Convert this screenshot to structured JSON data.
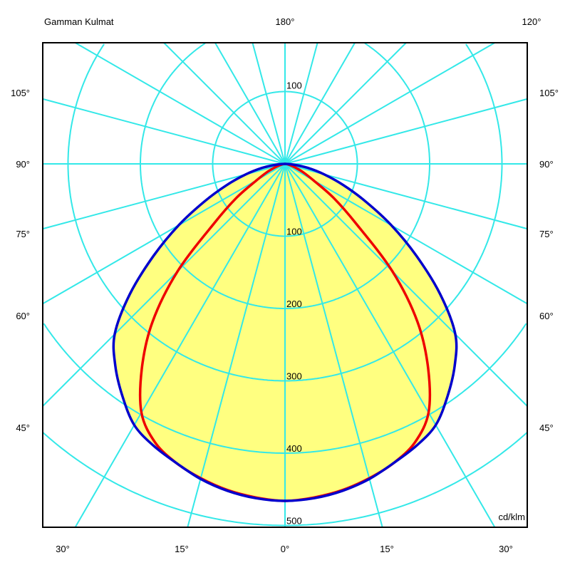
{
  "header": {
    "title": "Gamman Kulmat",
    "top_center_angle": "180°",
    "top_right_angle": "120°"
  },
  "side_labels": [
    "105°",
    "90°",
    "75°",
    "60°",
    "45°"
  ],
  "bottom_labels": [
    "30°",
    "15°",
    "0°",
    "15°",
    "30°"
  ],
  "unit": "cd/klm",
  "ring_labels_upper": [
    "100"
  ],
  "ring_labels_lower": [
    "100",
    "200",
    "300",
    "400",
    "500"
  ],
  "colors": {
    "grid": "#33e8e8",
    "fill": "#ffff80",
    "curve_1": "#0000cc",
    "curve_2": "#ee0000",
    "frame": "#000000"
  },
  "chart_data": {
    "type": "polar",
    "title": "Gamman Kulmat",
    "unit": "cd/klm",
    "radial_range": [
      0,
      600
    ],
    "radial_rings": [
      100,
      200,
      300,
      400,
      500,
      600
    ],
    "angular_grid_step_deg": 15,
    "grid": true,
    "symmetric": true,
    "gamma_deg": [
      0,
      5,
      10,
      15,
      20,
      25,
      30,
      35,
      40,
      45,
      50,
      55,
      60,
      65,
      70,
      75,
      80,
      85,
      90
    ],
    "series": [
      {
        "color": "#0000cc",
        "filled": true,
        "values": [
          466,
          464,
          459,
          451,
          440,
          430,
          417,
          392,
          365,
          333,
          280,
          222,
          170,
          123,
          86,
          56,
          32,
          12,
          0
        ]
      },
      {
        "color": "#ee0000",
        "filled": false,
        "values": [
          466,
          463,
          458,
          450,
          440,
          425,
          397,
          345,
          285,
          210,
          128,
          82,
          45,
          28,
          16,
          9,
          4,
          1,
          0
        ]
      }
    ]
  }
}
